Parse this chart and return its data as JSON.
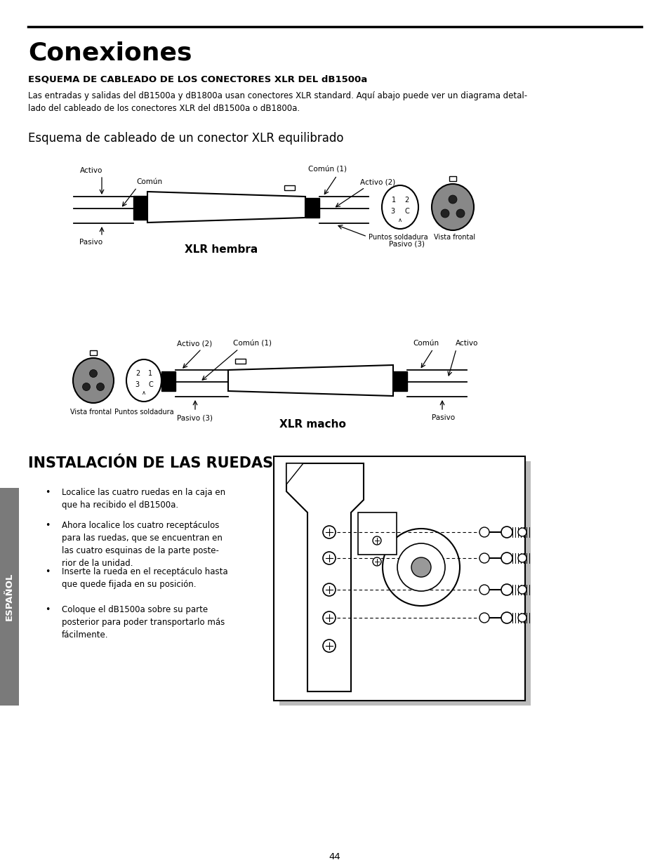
{
  "title": "Conexiones",
  "subtitle": "ESQUEMA DE CABLEADO DE LOS CONECTORES XLR DEL dB1500a",
  "body_text": "Las entradas y salidas del dB1500a y dB1800a usan conectores XLR standard. Aquí abajo puede ver un diagrama detal-\nlado del cableado de los conectores XLR del dB1500a o dB1800a.",
  "section2_title": "Esquema de cableado de un conector XLR equilibrado",
  "section3_title": "INSTALACIÓN DE LAS RUEDAS",
  "bullet_points": [
    "Localice las cuatro ruedas en la caja en\nque ha recibido el dB1500a.",
    "Ahora localice los cuatro receptáculos\npara las ruedas, que se encuentran en\nlas cuatro esquinas de la parte poste-\nrior de la unidad.",
    "Inserte la rueda en el receptáculo hasta\nque quede fijada en su posición.",
    "Coloque el dB1500a sobre su parte\nposterior para poder transportarlo más\nfácilmente."
  ],
  "xlr_hembra_label": "XLR hembra",
  "xlr_macho_label": "XLR macho",
  "hembra_labels": {
    "activo": "Activo",
    "comun": "Común",
    "comun1": "Común (1)",
    "activo2": "Activo (2)",
    "pasivo": "Pasivo",
    "pasivo3": "Pasivo (3)",
    "puntos": "Puntos soldadura",
    "vista": "Vista frontal"
  },
  "macho_labels": {
    "activo2": "Activo (2)",
    "comun1": "Común (1)",
    "comun": "Común",
    "activo": "Activo",
    "pasivo3": "Pasivo (3)",
    "pasivo": "Pasivo",
    "vista": "Vista frontal",
    "puntos": "Puntos soldadura"
  },
  "page_number": "44",
  "sidebar_text": "ESPAÑOL",
  "bg_color": "#ffffff",
  "text_color": "#000000",
  "sidebar_color": "#7a7a7a"
}
